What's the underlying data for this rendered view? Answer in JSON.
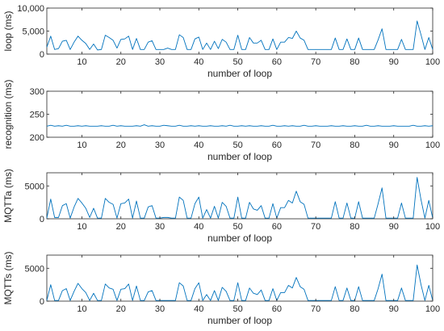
{
  "chart_data": [
    {
      "type": "line",
      "xlabel": "number of loop",
      "ylabel": "loop (ms)",
      "xlim": [
        1,
        100
      ],
      "ylim": [
        0,
        10000
      ],
      "xticks": [
        10,
        20,
        30,
        40,
        50,
        60,
        70,
        80,
        90,
        100
      ],
      "yticks": [
        0,
        5000,
        10000
      ],
      "ytick_labels": [
        "0",
        "5,000",
        "10,000"
      ],
      "series": [
        {
          "values": [
            1500,
            3900,
            1000,
            1200,
            2800,
            3000,
            1000,
            2600,
            3900,
            3000,
            2300,
            1000,
            2200,
            900,
            1000,
            4100,
            3600,
            3000,
            1300,
            3200,
            3300,
            3900,
            1000,
            3400,
            1000,
            1000,
            2600,
            2900,
            1000,
            1000,
            1000,
            1300,
            1000,
            1000,
            4200,
            3600,
            1000,
            1000,
            3300,
            3700,
            1000,
            2400,
            1000,
            2800,
            1200,
            3200,
            2600,
            1000,
            1000,
            4100,
            1000,
            1000,
            3600,
            2400,
            2400,
            3000,
            1000,
            1000,
            3300,
            1000,
            2600,
            2600,
            3600,
            3400,
            5000,
            3500,
            3000,
            1000,
            1000,
            1000,
            1000,
            1000,
            1000,
            1000,
            3500,
            1000,
            1000,
            3300,
            1000,
            1000,
            3500,
            1000,
            1000,
            1000,
            1000,
            3100,
            5500,
            1000,
            1000,
            1000,
            1000,
            3200,
            1000,
            1000,
            1000,
            7200,
            4200,
            1000,
            3600,
            1000
          ]
        }
      ]
    },
    {
      "type": "line",
      "xlabel": "number of loop",
      "ylabel": "recognition (ms)",
      "xlim": [
        1,
        100
      ],
      "ylim": [
        200,
        300
      ],
      "xticks": [
        10,
        20,
        30,
        40,
        50,
        60,
        70,
        80,
        90,
        100
      ],
      "yticks": [
        200,
        250,
        300
      ],
      "ytick_labels": [
        "200",
        "250",
        "300"
      ],
      "series": [
        {
          "values": [
            224,
            226,
            224,
            225,
            224,
            226,
            224,
            224,
            225,
            224,
            225,
            224,
            224,
            224,
            225,
            224,
            224,
            226,
            224,
            225,
            224,
            224,
            224,
            225,
            224,
            227,
            224,
            225,
            224,
            224,
            226,
            225,
            224,
            224,
            226,
            224,
            224,
            225,
            224,
            225,
            224,
            224,
            225,
            224,
            224,
            225,
            224,
            226,
            224,
            224,
            225,
            224,
            225,
            224,
            224,
            225,
            224,
            224,
            226,
            224,
            224,
            225,
            224,
            225,
            224,
            224,
            226,
            224,
            224,
            225,
            224,
            224,
            224,
            225,
            224,
            224,
            225,
            224,
            224,
            225,
            224,
            224,
            226,
            224,
            224,
            225,
            224,
            224,
            224,
            225,
            224,
            224,
            224,
            224,
            226,
            224,
            224,
            225,
            224,
            225
          ]
        }
      ]
    },
    {
      "type": "line",
      "xlabel": "number of loop",
      "ylabel": "MQTTa (ms)",
      "xlim": [
        1,
        100
      ],
      "ylim": [
        0,
        7000
      ],
      "xticks": [
        10,
        20,
        30,
        40,
        50,
        60,
        70,
        80,
        90,
        100
      ],
      "yticks": [
        0,
        5000
      ],
      "ytick_labels": [
        "0",
        "5000"
      ],
      "series": [
        {
          "values": [
            100,
            3000,
            200,
            200,
            2000,
            2300,
            100,
            1800,
            3100,
            2400,
            1600,
            200,
            1600,
            100,
            100,
            3100,
            2500,
            2200,
            100,
            2300,
            2400,
            3000,
            100,
            2700,
            100,
            100,
            1800,
            2000,
            100,
            100,
            200,
            200,
            100,
            100,
            3300,
            2800,
            100,
            100,
            2300,
            3300,
            100,
            1400,
            100,
            1900,
            100,
            2500,
            1900,
            100,
            100,
            3300,
            100,
            100,
            2500,
            1500,
            1300,
            2000,
            100,
            100,
            2300,
            100,
            1700,
            1700,
            2800,
            2400,
            4200,
            2600,
            2200,
            100,
            100,
            100,
            100,
            100,
            100,
            100,
            2600,
            100,
            100,
            2400,
            100,
            100,
            2600,
            100,
            100,
            100,
            100,
            2300,
            4700,
            100,
            100,
            100,
            100,
            2400,
            100,
            100,
            100,
            6300,
            2900,
            100,
            2800,
            100
          ]
        }
      ]
    },
    {
      "type": "line",
      "xlabel": "number of loop",
      "ylabel": "MQTTs (ms)",
      "xlim": [
        1,
        100
      ],
      "ylim": [
        0,
        7000
      ],
      "xticks": [
        10,
        20,
        30,
        40,
        50,
        60,
        70,
        80,
        90,
        100
      ],
      "yticks": [
        0,
        5000
      ],
      "ytick_labels": [
        "0",
        "5000"
      ],
      "series": [
        {
          "values": [
            100,
            2500,
            100,
            100,
            1600,
            1900,
            100,
            1500,
            2700,
            1900,
            1300,
            100,
            1200,
            100,
            100,
            2600,
            2000,
            1800,
            100,
            1800,
            1900,
            2600,
            100,
            2300,
            100,
            100,
            1400,
            1600,
            100,
            100,
            100,
            100,
            100,
            100,
            2800,
            2300,
            100,
            100,
            1900,
            2800,
            100,
            1000,
            100,
            1600,
            100,
            2100,
            1500,
            100,
            100,
            2800,
            100,
            100,
            2000,
            1200,
            1000,
            1700,
            100,
            100,
            1900,
            100,
            1300,
            1300,
            2400,
            2000,
            3600,
            2200,
            1800,
            100,
            100,
            100,
            100,
            100,
            100,
            100,
            2200,
            100,
            100,
            2000,
            100,
            100,
            2200,
            100,
            100,
            100,
            100,
            1900,
            4100,
            100,
            100,
            100,
            100,
            2000,
            100,
            100,
            100,
            5500,
            2500,
            100,
            2400,
            100
          ]
        }
      ]
    }
  ]
}
